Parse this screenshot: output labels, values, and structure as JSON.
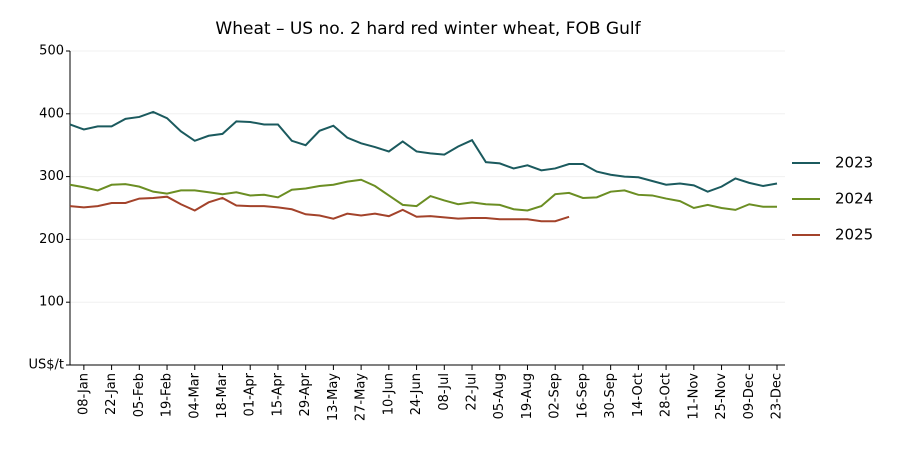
{
  "chart_data": {
    "type": "line",
    "title": "Wheat – US no. 2 hard red winter wheat, FOB Gulf",
    "categories": [
      null,
      "08-Jan",
      null,
      "22-Jan",
      null,
      "05-Feb",
      null,
      "19-Feb",
      null,
      "04-Mar",
      null,
      "18-Mar",
      null,
      "01-Apr",
      null,
      "15-Apr",
      null,
      "29-Apr",
      null,
      "13-May",
      null,
      "27-May",
      null,
      "10-Jun",
      null,
      "24-Jun",
      null,
      "08-Jul",
      null,
      "22-Jul",
      null,
      "05-Aug",
      null,
      "19-Aug",
      null,
      "02-Sep",
      null,
      "16-Sep",
      null,
      "30-Sep",
      null,
      "14-Oct",
      null,
      "28-Oct",
      null,
      "11-Nov",
      null,
      "25-Nov",
      null,
      "09-Dec",
      null,
      "23-Dec"
    ],
    "series": [
      {
        "name": "2023",
        "color": "#1b5a5e",
        "values": [
          383,
          375,
          380,
          380,
          392,
          395,
          403,
          393,
          372,
          357,
          365,
          368,
          388,
          387,
          383,
          383,
          357,
          350,
          373,
          381,
          362,
          353,
          347,
          340,
          356,
          340,
          337,
          335,
          348,
          358,
          323,
          321,
          313,
          318,
          310,
          313,
          320,
          320,
          308,
          303,
          300,
          299,
          293,
          287,
          289,
          286,
          276,
          284,
          297,
          290,
          285,
          289
        ]
      },
      {
        "name": "2024",
        "color": "#6b8e23",
        "values": [
          287,
          283,
          278,
          287,
          288,
          284,
          276,
          273,
          278,
          278,
          275,
          272,
          275,
          270,
          271,
          267,
          279,
          281,
          285,
          287,
          292,
          295,
          285,
          270,
          255,
          253,
          269,
          262,
          256,
          259,
          256,
          255,
          248,
          246,
          253,
          272,
          274,
          266,
          267,
          276,
          278,
          271,
          270,
          265,
          261,
          250,
          255,
          250,
          247,
          256,
          252,
          252
        ]
      },
      {
        "name": "2025",
        "color": "#a3432b",
        "values": [
          253,
          251,
          253,
          258,
          258,
          265,
          266,
          268,
          256,
          246,
          259,
          266,
          254,
          253,
          253,
          251,
          248,
          240,
          238,
          233,
          241,
          238,
          241,
          237,
          247,
          236,
          237,
          235,
          233,
          234,
          234,
          232,
          232,
          232,
          229,
          229,
          236,
          null,
          null,
          null,
          null,
          null,
          null,
          null,
          null,
          null,
          null,
          null,
          null,
          null,
          null,
          null
        ]
      }
    ],
    "ylim": [
      0,
      500
    ],
    "yticks": [
      {
        "value": 0,
        "label": "US$/t"
      },
      100,
      200,
      300,
      400,
      500
    ],
    "grid": true,
    "legend": "right"
  }
}
